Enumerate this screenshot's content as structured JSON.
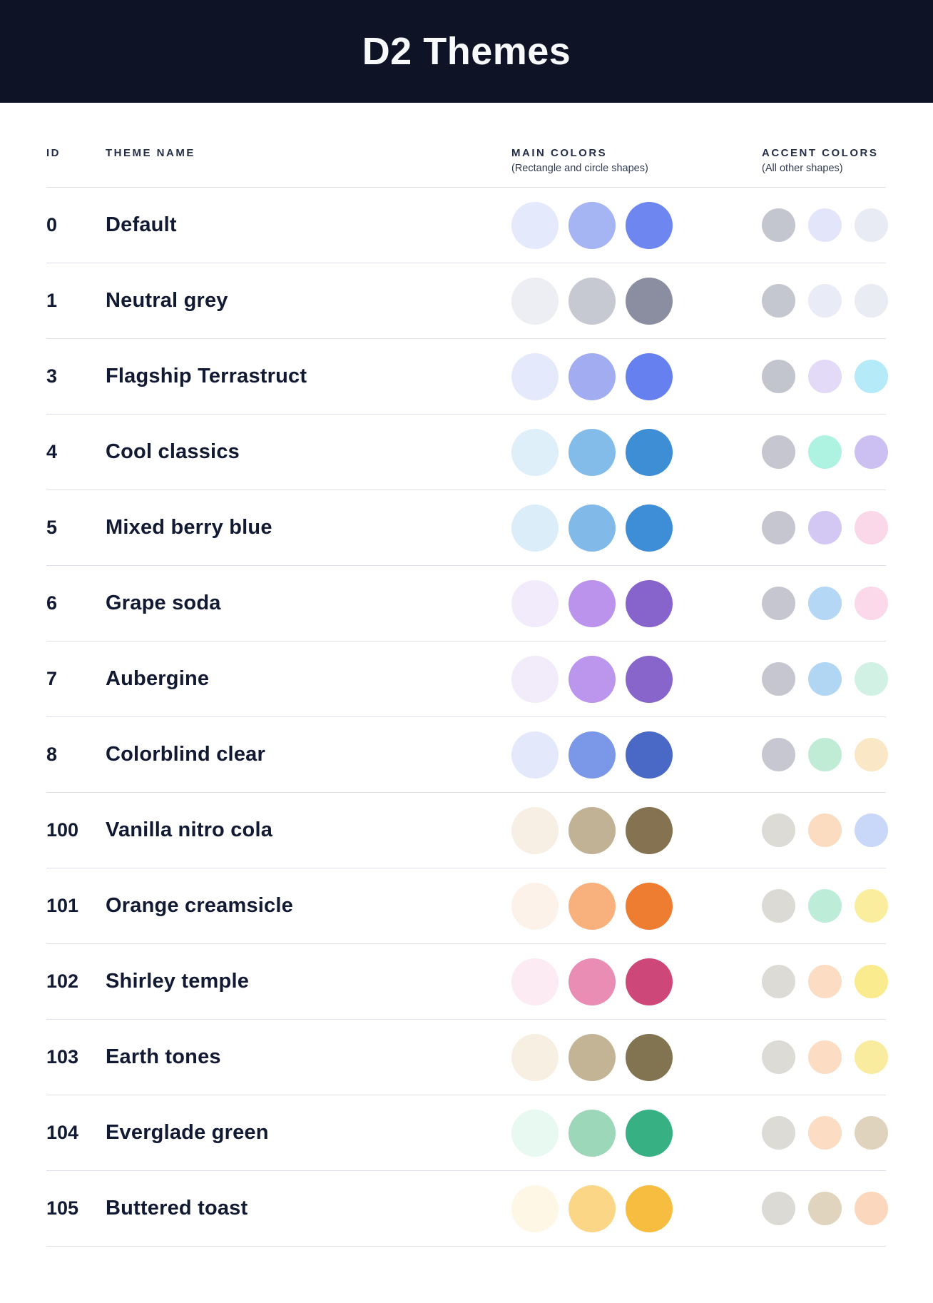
{
  "header": {
    "title": "D2 Themes",
    "background_color": "#0e1326",
    "title_color": "#f8f9fb"
  },
  "table": {
    "divider_color": "#dde0e9",
    "columns": {
      "id_label": "ID",
      "name_label": "THEME NAME",
      "main_label": "MAIN COLORS",
      "main_sublabel": "(Rectangle and circle shapes)",
      "accent_label": "ACCENT COLORS",
      "accent_sublabel": "(All other shapes)"
    },
    "rows": [
      {
        "id": "0",
        "name": "Default",
        "main_colors": [
          "#e5e9fc",
          "#a5b4f2",
          "#6d86f0"
        ],
        "accent_colors": [
          "#c3c5cf",
          "#e3e6fb",
          "#e9ebf4"
        ]
      },
      {
        "id": "1",
        "name": "Neutral grey",
        "main_colors": [
          "#eceef3",
          "#c7c9d2",
          "#8b8ea0"
        ],
        "accent_colors": [
          "#c4c6d0",
          "#e9ecf6",
          "#eaecf4"
        ]
      },
      {
        "id": "3",
        "name": "Flagship Terrastruct",
        "main_colors": [
          "#e5e9fc",
          "#a2acf0",
          "#6680f0"
        ],
        "accent_colors": [
          "#c2c4ce",
          "#e3daf7",
          "#b5eaf8"
        ]
      },
      {
        "id": "4",
        "name": "Cool classics",
        "main_colors": [
          "#deeffa",
          "#84bce9",
          "#3e8ed5"
        ],
        "accent_colors": [
          "#c5c6cf",
          "#aef2e1",
          "#ccc0f2"
        ]
      },
      {
        "id": "5",
        "name": "Mixed berry blue",
        "main_colors": [
          "#dcedfa",
          "#81bae9",
          "#3d8ed7"
        ],
        "accent_colors": [
          "#c5c6cf",
          "#d3c8f3",
          "#fbd8e9"
        ]
      },
      {
        "id": "6",
        "name": "Grape soda",
        "main_colors": [
          "#f2ebfb",
          "#bb93ec",
          "#8764cc"
        ],
        "accent_colors": [
          "#c5c6cf",
          "#b3d7f5",
          "#fbd9eb"
        ]
      },
      {
        "id": "7",
        "name": "Aubergine",
        "main_colors": [
          "#f1ebfa",
          "#bc95ec",
          "#8765cb"
        ],
        "accent_colors": [
          "#c5c6cf",
          "#b0d6f4",
          "#d2f1e5"
        ]
      },
      {
        "id": "8",
        "name": "Colorblind clear",
        "main_colors": [
          "#e4e8fb",
          "#7b97e8",
          "#4a69c6"
        ],
        "accent_colors": [
          "#c6c7d1",
          "#c0ebd4",
          "#fae7c6"
        ]
      },
      {
        "id": "100",
        "name": "Vanilla nitro cola",
        "main_colors": [
          "#f8efe4",
          "#c1b296",
          "#847250"
        ],
        "accent_colors": [
          "#dcdbd5",
          "#fcdcc1",
          "#c9d7f8"
        ]
      },
      {
        "id": "101",
        "name": "Orange creamsicle",
        "main_colors": [
          "#fdf2ea",
          "#f8b17d",
          "#ee7d31"
        ],
        "accent_colors": [
          "#dcdad4",
          "#bdecd8",
          "#fbed9e"
        ]
      },
      {
        "id": "102",
        "name": "Shirley temple",
        "main_colors": [
          "#fcebf2",
          "#e98db5",
          "#cd4778"
        ],
        "accent_colors": [
          "#dddbd5",
          "#fcdcc2",
          "#faeb8e"
        ]
      },
      {
        "id": "103",
        "name": "Earth tones",
        "main_colors": [
          "#f8efe3",
          "#c3b495",
          "#827450"
        ],
        "accent_colors": [
          "#dcdbd5",
          "#fcdcc3",
          "#faec9e"
        ]
      },
      {
        "id": "104",
        "name": "Everglade green",
        "main_colors": [
          "#e8f9f2",
          "#9cd7b9",
          "#37b084"
        ],
        "accent_colors": [
          "#dcdbd6",
          "#fcdcc3",
          "#e0d3be"
        ]
      },
      {
        "id": "105",
        "name": "Buttered toast",
        "main_colors": [
          "#fef7e6",
          "#fbd687",
          "#f7bd41"
        ],
        "accent_colors": [
          "#dcdad5",
          "#e1d4bf",
          "#fbd8bd"
        ]
      }
    ]
  }
}
